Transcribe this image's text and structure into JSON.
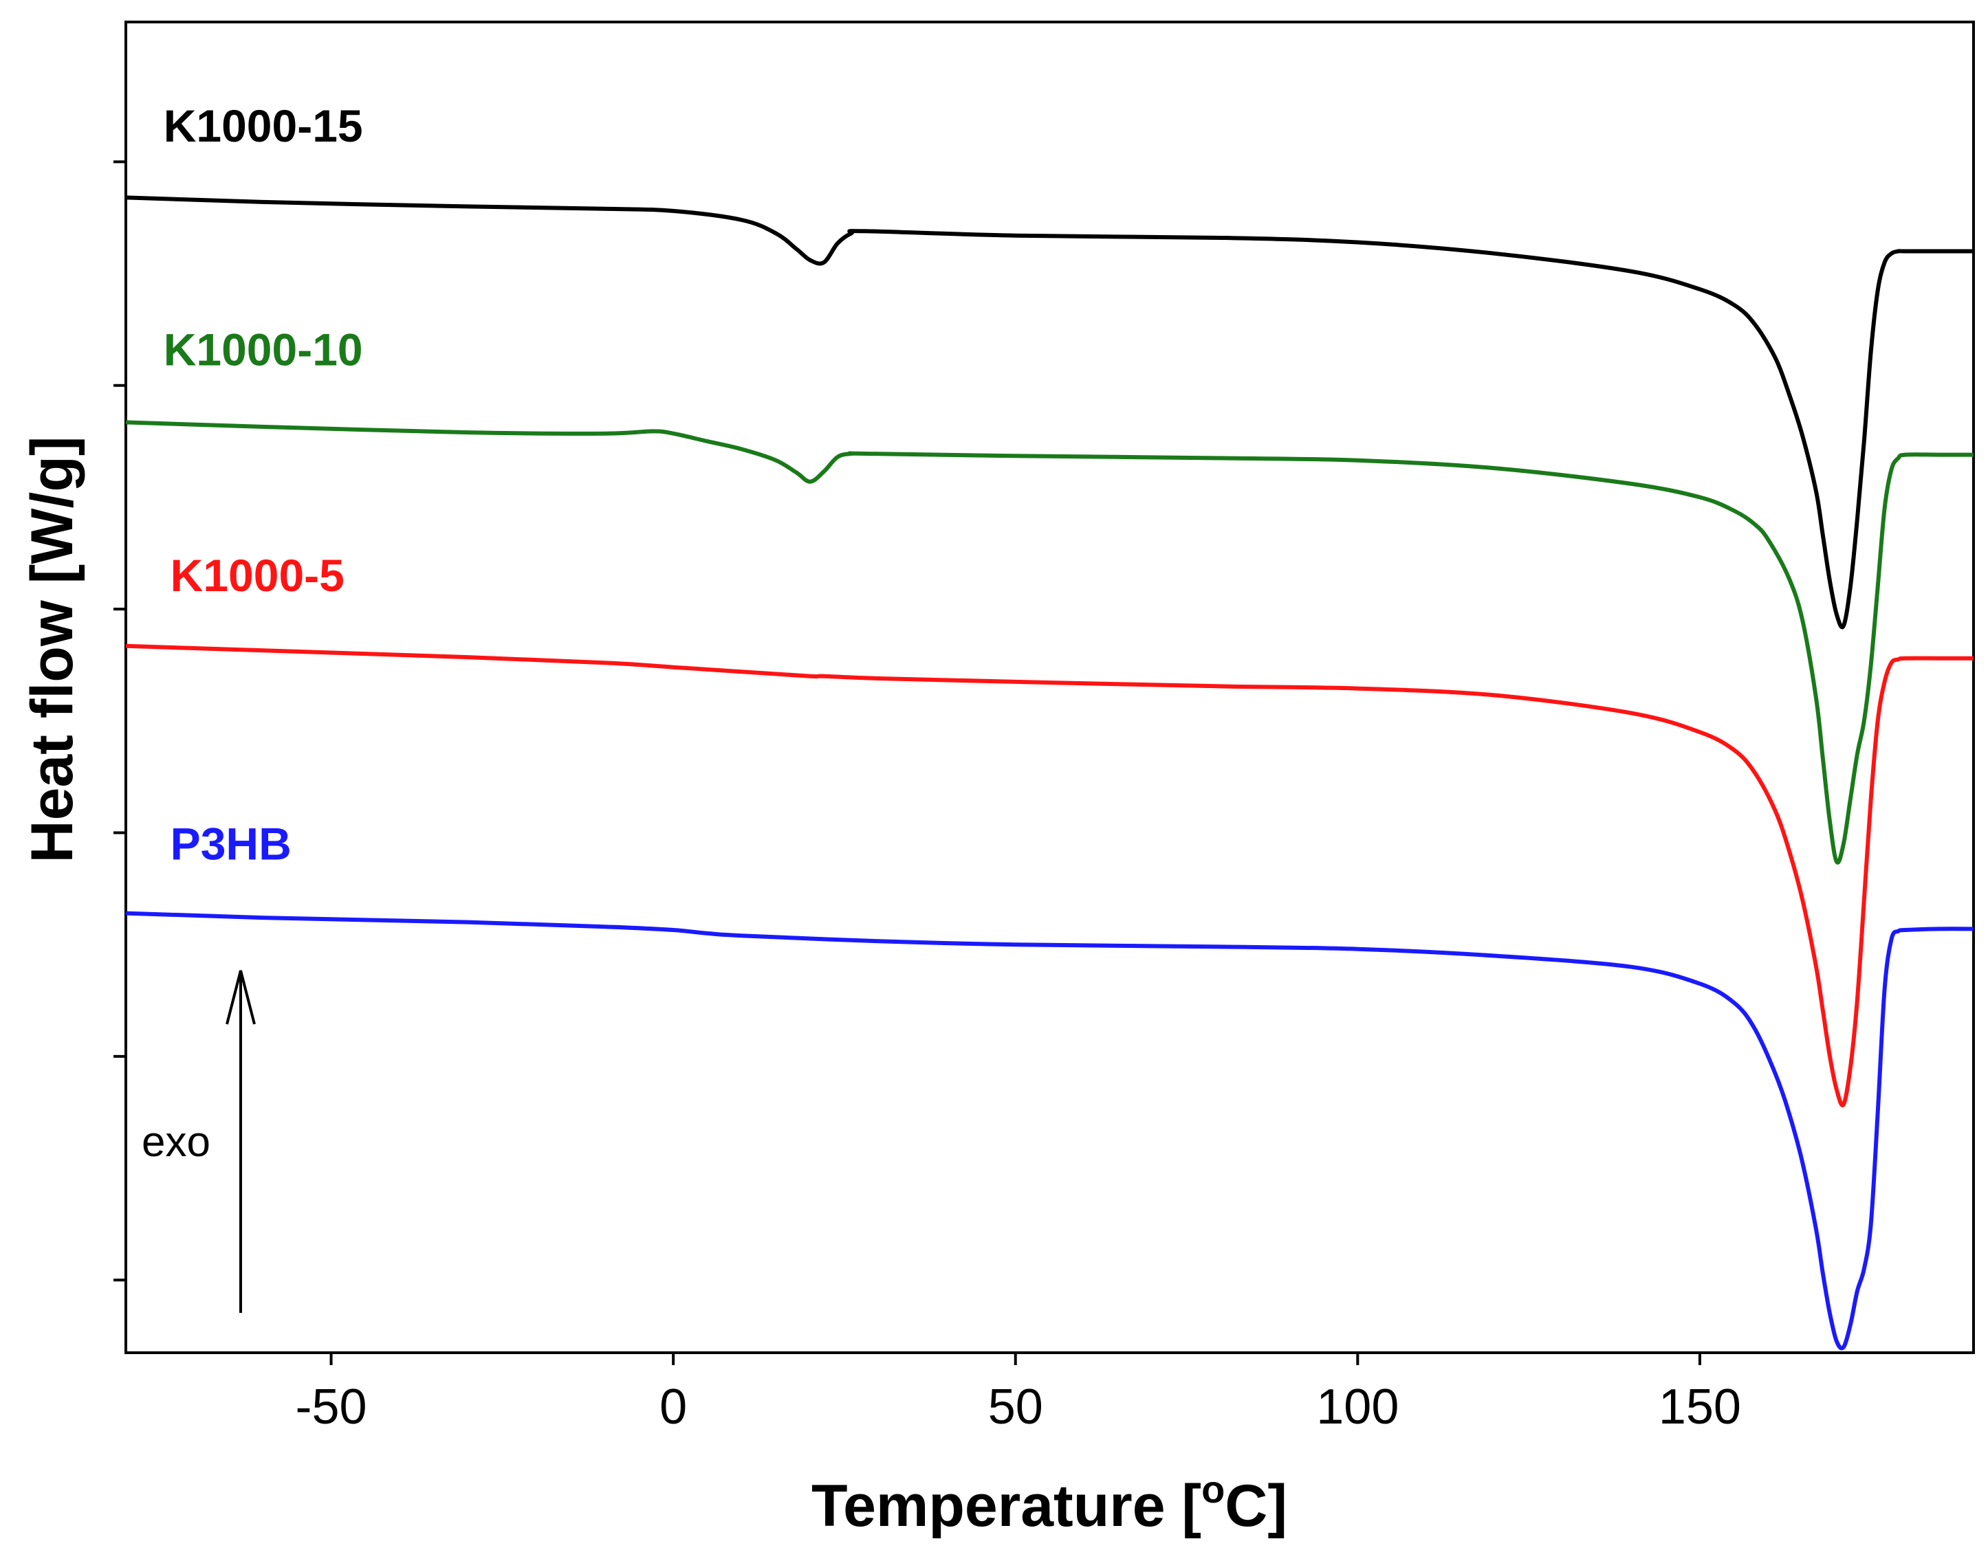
{
  "chart_data": {
    "type": "line",
    "title": "",
    "xlabel": "Temperature [",
    "xlabel_sup": "o",
    "xlabel_unit": "C]",
    "ylabel": "Heat flow [W/g]",
    "xlim": [
      -80,
      190
    ],
    "ylim": [
      -7.65,
      4.25
    ],
    "x_ticks": [
      -50,
      0,
      50,
      100,
      150
    ],
    "x_tick_labels": [
      "-50",
      "0",
      "50",
      "100",
      "150"
    ],
    "y_ticks": [
      3,
      1,
      -1,
      -3,
      -5,
      -7
    ],
    "y_tick_labels_shown": false,
    "grid": false,
    "legend": "none",
    "annotation": {
      "text": "exo",
      "arrow": "up"
    },
    "series": [
      {
        "name": "K1000-15",
        "color": "#000000",
        "x": [
          -80,
          -60,
          -30,
          -10,
          0,
          10,
          15,
          18,
          20,
          22,
          24,
          26,
          28,
          50,
          80,
          100,
          120,
          140,
          150,
          155,
          158,
          161,
          163,
          165,
          167,
          168,
          169,
          170,
          171,
          172,
          173,
          174,
          175,
          176,
          177,
          178,
          179,
          180,
          185,
          190
        ],
        "y": [
          2.68,
          2.64,
          2.6,
          2.58,
          2.56,
          2.48,
          2.36,
          2.22,
          2.12,
          2.1,
          2.27,
          2.36,
          2.38,
          2.34,
          2.32,
          2.28,
          2.18,
          2.02,
          1.86,
          1.72,
          1.55,
          1.25,
          0.93,
          0.55,
          0.05,
          -0.35,
          -0.75,
          -1.05,
          -1.15,
          -0.8,
          -0.2,
          0.5,
          1.3,
          1.85,
          2.1,
          2.18,
          2.2,
          2.2,
          2.2,
          2.2
        ]
      },
      {
        "name": "K1000-10",
        "color": "#1a7a1a",
        "x": [
          -80,
          -60,
          -30,
          -10,
          -3,
          0,
          5,
          10,
          15,
          18,
          20,
          22,
          24,
          26,
          28,
          50,
          80,
          100,
          120,
          140,
          150,
          155,
          158,
          160,
          163,
          165,
          167,
          168,
          169,
          170,
          171,
          172,
          173,
          174,
          175,
          176,
          177,
          178,
          179,
          180,
          185,
          190
        ],
        "y": [
          0.67,
          0.63,
          0.58,
          0.57,
          0.59,
          0.57,
          0.5,
          0.43,
          0.33,
          0.22,
          0.14,
          0.23,
          0.36,
          0.39,
          0.39,
          0.37,
          0.35,
          0.33,
          0.26,
          0.12,
          0.0,
          -0.12,
          -0.24,
          -0.38,
          -0.72,
          -1.1,
          -1.8,
          -2.35,
          -2.9,
          -3.26,
          -3.1,
          -2.7,
          -2.3,
          -2.0,
          -1.5,
          -0.8,
          -0.1,
          0.25,
          0.35,
          0.38,
          0.38,
          0.38
        ]
      },
      {
        "name": "K1000-5",
        "color": "#ff1414",
        "x": [
          -80,
          -60,
          -30,
          -10,
          0,
          10,
          20,
          22,
          30,
          50,
          80,
          100,
          120,
          140,
          150,
          155,
          158,
          161,
          163,
          165,
          167,
          168,
          169,
          170,
          171,
          172,
          173,
          174,
          175,
          176,
          177,
          178,
          179,
          180,
          185,
          190
        ],
        "y": [
          -1.33,
          -1.37,
          -1.43,
          -1.48,
          -1.52,
          -1.56,
          -1.6,
          -1.6,
          -1.62,
          -1.65,
          -1.69,
          -1.71,
          -1.77,
          -1.93,
          -2.1,
          -2.26,
          -2.46,
          -2.8,
          -3.15,
          -3.6,
          -4.2,
          -4.6,
          -5.0,
          -5.3,
          -5.43,
          -5.1,
          -4.5,
          -3.6,
          -2.7,
          -2.0,
          -1.65,
          -1.48,
          -1.45,
          -1.44,
          -1.44,
          -1.44
        ]
      },
      {
        "name": "P3HB",
        "color": "#1a1aff",
        "x": [
          -80,
          -60,
          -30,
          -10,
          0,
          5,
          10,
          30,
          50,
          80,
          100,
          120,
          140,
          150,
          155,
          158,
          161,
          163,
          165,
          167,
          168,
          169,
          170,
          171,
          172,
          173,
          174,
          175,
          176,
          177,
          178,
          179,
          180,
          185,
          190
        ],
        "y": [
          -3.72,
          -3.76,
          -3.8,
          -3.84,
          -3.87,
          -3.9,
          -3.92,
          -3.97,
          -4.0,
          -4.02,
          -4.04,
          -4.1,
          -4.2,
          -4.35,
          -4.52,
          -4.75,
          -5.15,
          -5.5,
          -5.95,
          -6.55,
          -6.95,
          -7.3,
          -7.55,
          -7.6,
          -7.4,
          -7.1,
          -6.9,
          -6.5,
          -5.5,
          -4.4,
          -3.95,
          -3.88,
          -3.87,
          -3.86,
          -3.86
        ]
      }
    ]
  }
}
